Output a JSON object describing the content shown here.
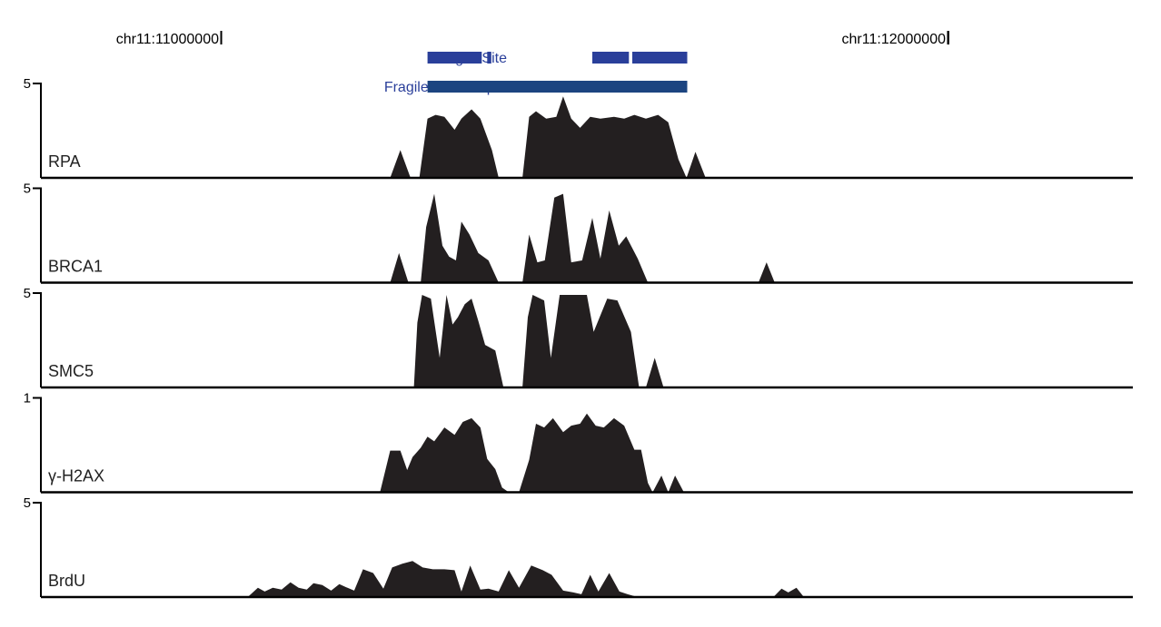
{
  "coordinates": {
    "start_label": "chr11:11000000",
    "end_label": "chr11:12000000"
  },
  "annotations": [
    {
      "name": "Fragile Site",
      "color": "#2a3f9a",
      "segments": [
        [
          11400000,
          11480000
        ],
        [
          11488000,
          11494000
        ],
        [
          11643000,
          11697000
        ],
        [
          11702000,
          11783000
        ]
      ]
    },
    {
      "name": "Fragile site hotspot",
      "color": "#1c4480",
      "segments": [
        [
          11400000,
          11783000
        ]
      ]
    }
  ],
  "chart_data": {
    "type": "area",
    "x_unit": "genomic position (chr11)",
    "xlim": [
      10830000,
      12440000
    ],
    "fill_color": "#231f20",
    "tracks": [
      {
        "name": "RPA",
        "ymax": "5",
        "ylim": [
          0,
          5
        ],
        "points": [
          [
            11345000,
            0
          ],
          [
            11360000,
            1.5
          ],
          [
            11375000,
            0
          ],
          [
            11388000,
            0
          ],
          [
            11400000,
            3.2
          ],
          [
            11412000,
            3.4
          ],
          [
            11425000,
            3.3
          ],
          [
            11440000,
            2.6
          ],
          [
            11450000,
            3.2
          ],
          [
            11465000,
            3.7
          ],
          [
            11478000,
            3.2
          ],
          [
            11495000,
            1.5
          ],
          [
            11505000,
            0
          ],
          [
            11540000,
            0
          ],
          [
            11550000,
            3.3
          ],
          [
            11560000,
            3.6
          ],
          [
            11575000,
            3.2
          ],
          [
            11590000,
            3.3
          ],
          [
            11600000,
            4.4
          ],
          [
            11612000,
            3.2
          ],
          [
            11625000,
            2.7
          ],
          [
            11640000,
            3.3
          ],
          [
            11655000,
            3.2
          ],
          [
            11675000,
            3.3
          ],
          [
            11690000,
            3.2
          ],
          [
            11705000,
            3.4
          ],
          [
            11722000,
            3.2
          ],
          [
            11740000,
            3.4
          ],
          [
            11755000,
            3.0
          ],
          [
            11770000,
            1.0
          ],
          [
            11782000,
            0
          ],
          [
            11795000,
            1.4
          ],
          [
            11810000,
            0
          ]
        ]
      },
      {
        "name": "BRCA1",
        "ymax": "5",
        "ylim": [
          0,
          5
        ],
        "points": [
          [
            11345000,
            0
          ],
          [
            11358000,
            1.6
          ],
          [
            11372000,
            0
          ],
          [
            11390000,
            0
          ],
          [
            11398000,
            3.0
          ],
          [
            11410000,
            4.8
          ],
          [
            11422000,
            2.0
          ],
          [
            11432000,
            1.4
          ],
          [
            11442000,
            1.2
          ],
          [
            11450000,
            3.3
          ],
          [
            11462000,
            2.6
          ],
          [
            11475000,
            1.6
          ],
          [
            11490000,
            1.2
          ],
          [
            11505000,
            0
          ],
          [
            11540000,
            0
          ],
          [
            11550000,
            2.6
          ],
          [
            11562000,
            1.1
          ],
          [
            11573000,
            1.2
          ],
          [
            11587000,
            4.6
          ],
          [
            11600000,
            4.8
          ],
          [
            11612000,
            1.1
          ],
          [
            11628000,
            1.2
          ],
          [
            11643000,
            3.5
          ],
          [
            11655000,
            1.3
          ],
          [
            11668000,
            3.9
          ],
          [
            11682000,
            2.0
          ],
          [
            11693000,
            2.5
          ],
          [
            11710000,
            1.3
          ],
          [
            11725000,
            0
          ],
          [
            11888000,
            0
          ],
          [
            11900000,
            1.1
          ],
          [
            11912000,
            0
          ]
        ]
      },
      {
        "name": "SMC5",
        "ymax": "5",
        "ylim": [
          0,
          5
        ],
        "points": [
          [
            11380000,
            0
          ],
          [
            11385000,
            3.5
          ],
          [
            11392000,
            5.0
          ],
          [
            11405000,
            4.8
          ],
          [
            11418000,
            1.6
          ],
          [
            11428000,
            5.0
          ],
          [
            11437000,
            3.4
          ],
          [
            11445000,
            3.8
          ],
          [
            11455000,
            4.5
          ],
          [
            11465000,
            4.8
          ],
          [
            11475000,
            3.6
          ],
          [
            11485000,
            2.3
          ],
          [
            11500000,
            2.0
          ],
          [
            11512000,
            0
          ],
          [
            11540000,
            0
          ],
          [
            11548000,
            3.8
          ],
          [
            11555000,
            5.0
          ],
          [
            11572000,
            4.7
          ],
          [
            11582000,
            1.6
          ],
          [
            11595000,
            5.0
          ],
          [
            11635000,
            5.0
          ],
          [
            11645000,
            3.0
          ],
          [
            11665000,
            4.8
          ],
          [
            11680000,
            4.7
          ],
          [
            11700000,
            3.0
          ],
          [
            11712000,
            0
          ],
          [
            11722000,
            0
          ],
          [
            11735000,
            1.6
          ],
          [
            11748000,
            0
          ]
        ]
      },
      {
        "name": "γ-H2AX",
        "ymax": "1",
        "ylim": [
          0,
          1
        ],
        "points": [
          [
            11330000,
            0
          ],
          [
            11345000,
            0.45
          ],
          [
            11360000,
            0.45
          ],
          [
            11370000,
            0.24
          ],
          [
            11378000,
            0.38
          ],
          [
            11390000,
            0.48
          ],
          [
            11400000,
            0.6
          ],
          [
            11410000,
            0.55
          ],
          [
            11425000,
            0.7
          ],
          [
            11440000,
            0.62
          ],
          [
            11452000,
            0.76
          ],
          [
            11465000,
            0.8
          ],
          [
            11478000,
            0.7
          ],
          [
            11488000,
            0.36
          ],
          [
            11500000,
            0.25
          ],
          [
            11510000,
            0.05
          ],
          [
            11520000,
            0
          ],
          [
            11535000,
            0
          ],
          [
            11550000,
            0.35
          ],
          [
            11560000,
            0.74
          ],
          [
            11572000,
            0.7
          ],
          [
            11585000,
            0.8
          ],
          [
            11600000,
            0.65
          ],
          [
            11612000,
            0.72
          ],
          [
            11625000,
            0.74
          ],
          [
            11635000,
            0.85
          ],
          [
            11648000,
            0.72
          ],
          [
            11660000,
            0.7
          ],
          [
            11675000,
            0.8
          ],
          [
            11690000,
            0.72
          ],
          [
            11705000,
            0.46
          ],
          [
            11715000,
            0.46
          ],
          [
            11725000,
            0.1
          ],
          [
            11732000,
            0
          ],
          [
            11745000,
            0.18
          ],
          [
            11755000,
            0
          ],
          [
            11765000,
            0.18
          ],
          [
            11778000,
            0
          ]
        ]
      },
      {
        "name": "BrdU",
        "ymax": "5",
        "ylim": [
          0,
          5
        ],
        "points": [
          [
            11135000,
            0
          ],
          [
            11150000,
            0.5
          ],
          [
            11160000,
            0.3
          ],
          [
            11172000,
            0.5
          ],
          [
            11185000,
            0.4
          ],
          [
            11198000,
            0.8
          ],
          [
            11210000,
            0.5
          ],
          [
            11222000,
            0.4
          ],
          [
            11232000,
            0.75
          ],
          [
            11245000,
            0.65
          ],
          [
            11258000,
            0.35
          ],
          [
            11270000,
            0.7
          ],
          [
            11282000,
            0.5
          ],
          [
            11292000,
            0.35
          ],
          [
            11305000,
            1.5
          ],
          [
            11320000,
            1.3
          ],
          [
            11335000,
            0.45
          ],
          [
            11348000,
            1.6
          ],
          [
            11363000,
            1.8
          ],
          [
            11378000,
            1.95
          ],
          [
            11393000,
            1.6
          ],
          [
            11408000,
            1.5
          ],
          [
            11425000,
            1.5
          ],
          [
            11440000,
            1.45
          ],
          [
            11450000,
            0.3
          ],
          [
            11463000,
            1.7
          ],
          [
            11478000,
            0.4
          ],
          [
            11490000,
            0.45
          ],
          [
            11505000,
            0.3
          ],
          [
            11520000,
            1.45
          ],
          [
            11535000,
            0.5
          ],
          [
            11553000,
            1.7
          ],
          [
            11570000,
            1.45
          ],
          [
            11583000,
            1.2
          ],
          [
            11600000,
            0.35
          ],
          [
            11615000,
            0.25
          ],
          [
            11627000,
            0.15
          ],
          [
            11640000,
            1.2
          ],
          [
            11652000,
            0.3
          ],
          [
            11668000,
            1.3
          ],
          [
            11683000,
            0.3
          ],
          [
            11695000,
            0.15
          ],
          [
            11710000,
            0
          ],
          [
            11910000,
            0
          ],
          [
            11922000,
            0.45
          ],
          [
            11932000,
            0.25
          ],
          [
            11944000,
            0.5
          ],
          [
            11955000,
            0
          ]
        ]
      }
    ]
  }
}
